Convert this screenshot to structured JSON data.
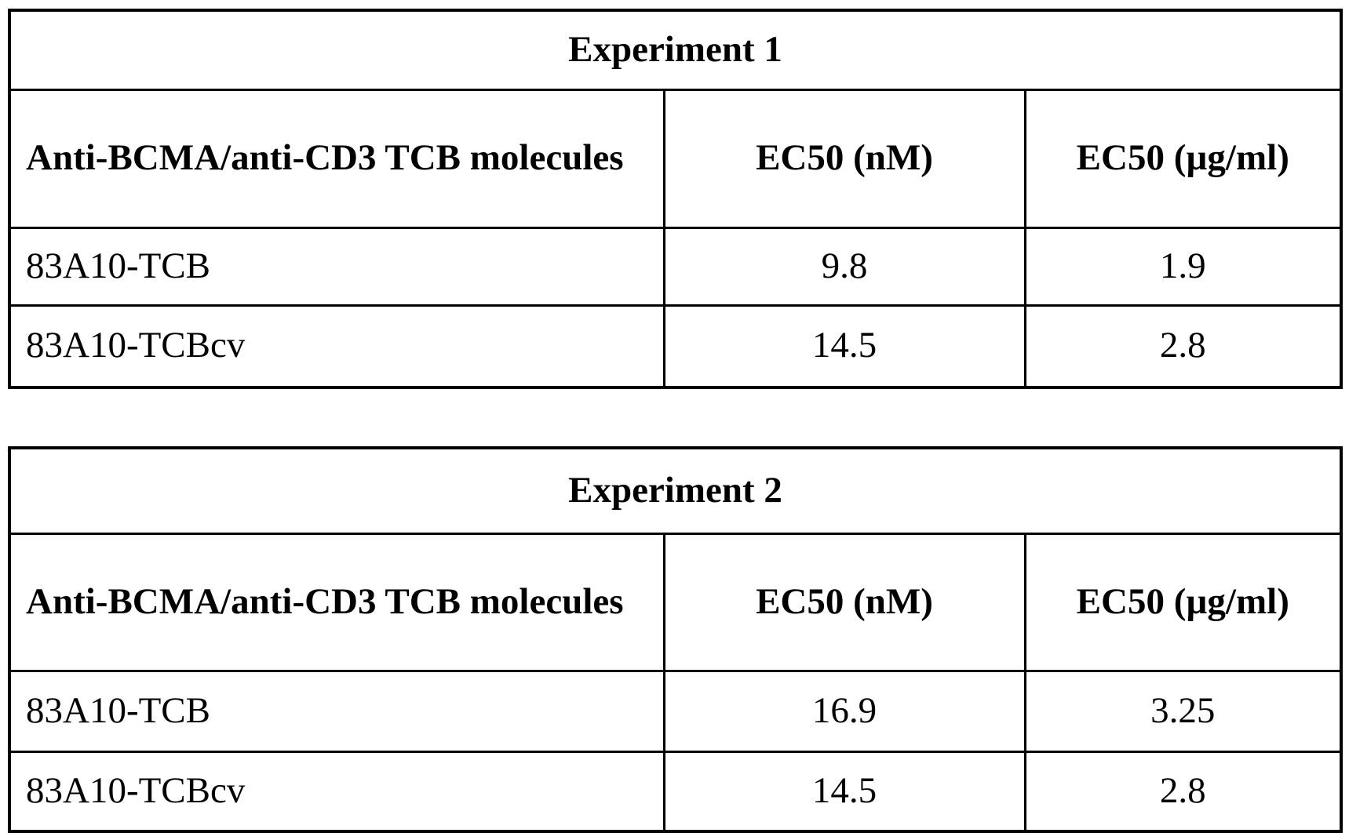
{
  "page": {
    "background": "#ffffff",
    "border_color": "#000000",
    "text_color": "#000000"
  },
  "tables": [
    {
      "title": "Experiment 1",
      "headers": [
        "Anti-BCMA/anti-CD3 TCB molecules",
        "EC50 (nM)",
        "EC50 (µg/ml)"
      ],
      "rows": [
        [
          "83A10-TCB",
          "9.8",
          "1.9"
        ],
        [
          "83A10-TCBcv",
          "14.5",
          "2.8"
        ]
      ]
    },
    {
      "title": "Experiment 2",
      "headers": [
        "Anti-BCMA/anti-CD3 TCB molecules",
        "EC50 (nM)",
        "EC50 (µg/ml)"
      ],
      "rows": [
        [
          "83A10-TCB",
          "16.9",
          "3.25"
        ],
        [
          "83A10-TCBcv",
          "14.5",
          "2.8"
        ]
      ]
    }
  ]
}
